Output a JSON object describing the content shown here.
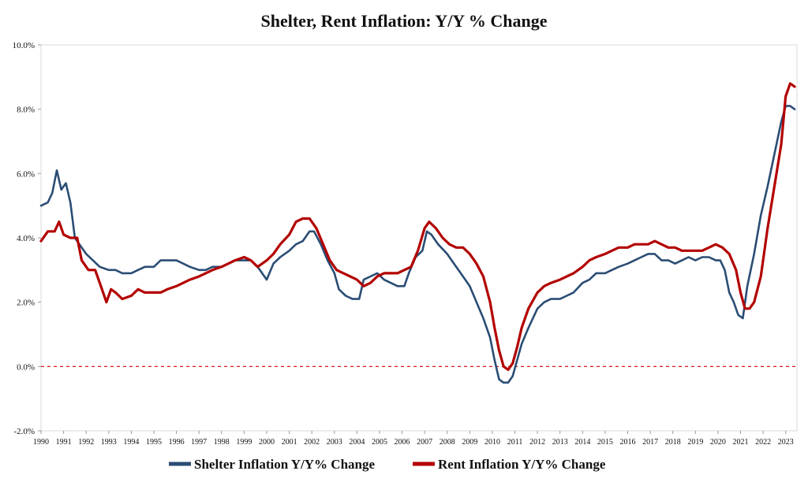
{
  "chart_data": {
    "type": "line",
    "title": "Shelter, Rent Inflation: Y/Y % Change",
    "xlabel": "",
    "ylabel": "",
    "xlim": [
      1990,
      2023.5
    ],
    "ylim": [
      -2,
      10
    ],
    "y_ticks": [
      -2,
      0,
      2,
      4,
      6,
      8,
      10
    ],
    "y_tick_labels": [
      "-2.0%",
      "0.0%",
      "2.0%",
      "4.0%",
      "6.0%",
      "8.0%",
      "10.0%"
    ],
    "x_ticks": [
      1990,
      1991,
      1992,
      1993,
      1994,
      1995,
      1996,
      1997,
      1998,
      1999,
      2000,
      2001,
      2002,
      2003,
      2004,
      2005,
      2006,
      2007,
      2008,
      2009,
      2010,
      2011,
      2012,
      2013,
      2014,
      2015,
      2016,
      2017,
      2018,
      2019,
      2020,
      2021,
      2022,
      2023
    ],
    "x_tick_labels": [
      "1990",
      "1991",
      "1992",
      "1993",
      "1994",
      "1995",
      "1996",
      "1997",
      "1998",
      "1999",
      "2000",
      "2001",
      "2002",
      "2003",
      "2004",
      "2005",
      "2006",
      "2007",
      "2008",
      "2009",
      "2010",
      "2011",
      "2012",
      "2013",
      "2014",
      "2015",
      "2016",
      "2017",
      "2018",
      "2019",
      "2020",
      "2021",
      "2022",
      "2023"
    ],
    "reference_line": {
      "y": 0,
      "style": "dashed",
      "color": "#cc0000"
    },
    "legend_position": "bottom",
    "series": [
      {
        "name": "Shelter Inflation Y/Y% Change",
        "color": "#2a4d74",
        "x": [
          1990,
          1990.3,
          1990.5,
          1990.7,
          1990.9,
          1991.1,
          1991.3,
          1991.5,
          1991.8,
          1992,
          1992.3,
          1992.6,
          1993,
          1993.3,
          1993.6,
          1994,
          1994.3,
          1994.6,
          1995,
          1995.3,
          1995.6,
          1996,
          1996.3,
          1996.6,
          1997,
          1997.3,
          1997.6,
          1998,
          1998.3,
          1998.6,
          1999,
          1999.3,
          1999.6,
          2000,
          2000.3,
          2000.6,
          2001,
          2001.3,
          2001.6,
          2001.9,
          2002.1,
          2002.4,
          2002.7,
          2003,
          2003.2,
          2003.5,
          2003.8,
          2004.1,
          2004.3,
          2004.6,
          2004.9,
          2005.2,
          2005.5,
          2005.8,
          2006.1,
          2006.3,
          2006.6,
          2006.9,
          2007.1,
          2007.3,
          2007.6,
          2008,
          2008.3,
          2008.6,
          2009,
          2009.3,
          2009.6,
          2009.9,
          2010.1,
          2010.3,
          2010.5,
          2010.7,
          2010.9,
          2011.1,
          2011.3,
          2011.6,
          2012,
          2012.3,
          2012.6,
          2013,
          2013.3,
          2013.6,
          2014,
          2014.3,
          2014.6,
          2015,
          2015.3,
          2015.6,
          2016,
          2016.3,
          2016.6,
          2016.9,
          2017.2,
          2017.5,
          2017.8,
          2018.1,
          2018.4,
          2018.7,
          2019,
          2019.3,
          2019.6,
          2019.9,
          2020.1,
          2020.3,
          2020.5,
          2020.7,
          2020.9,
          2021.1,
          2021.3,
          2021.6,
          2021.9,
          2022.2,
          2022.5,
          2022.8,
          2023,
          2023.2,
          2023.4
        ],
        "values": [
          5.0,
          5.1,
          5.4,
          6.1,
          5.5,
          5.7,
          5.1,
          4.0,
          3.7,
          3.5,
          3.3,
          3.1,
          3.0,
          3.0,
          2.9,
          2.9,
          3.0,
          3.1,
          3.1,
          3.3,
          3.3,
          3.3,
          3.2,
          3.1,
          3.0,
          3.0,
          3.1,
          3.1,
          3.2,
          3.3,
          3.3,
          3.3,
          3.1,
          2.7,
          3.2,
          3.4,
          3.6,
          3.8,
          3.9,
          4.2,
          4.2,
          3.8,
          3.3,
          2.9,
          2.4,
          2.2,
          2.1,
          2.1,
          2.7,
          2.8,
          2.9,
          2.7,
          2.6,
          2.5,
          2.5,
          2.9,
          3.4,
          3.6,
          4.2,
          4.1,
          3.8,
          3.5,
          3.2,
          2.9,
          2.5,
          2.0,
          1.5,
          0.9,
          0.2,
          -0.4,
          -0.5,
          -0.5,
          -0.3,
          0.2,
          0.7,
          1.2,
          1.8,
          2.0,
          2.1,
          2.1,
          2.2,
          2.3,
          2.6,
          2.7,
          2.9,
          2.9,
          3.0,
          3.1,
          3.2,
          3.3,
          3.4,
          3.5,
          3.5,
          3.3,
          3.3,
          3.2,
          3.3,
          3.4,
          3.3,
          3.4,
          3.4,
          3.3,
          3.3,
          3.0,
          2.3,
          2.0,
          1.6,
          1.5,
          2.5,
          3.5,
          4.7,
          5.6,
          6.6,
          7.6,
          8.1,
          8.1,
          8.0
        ]
      },
      {
        "name": "Rent Inflation Y/Y% Change",
        "color": "#b30000",
        "x": [
          1990,
          1990.3,
          1990.6,
          1990.8,
          1991,
          1991.3,
          1991.6,
          1991.8,
          1992.1,
          1992.4,
          1992.6,
          1992.9,
          1993.1,
          1993.3,
          1993.6,
          1994,
          1994.3,
          1994.6,
          1995,
          1995.3,
          1995.6,
          1996,
          1996.3,
          1996.6,
          1997,
          1997.3,
          1997.6,
          1998,
          1998.3,
          1998.6,
          1999,
          1999.3,
          1999.6,
          2000,
          2000.3,
          2000.6,
          2001,
          2001.3,
          2001.6,
          2001.9,
          2002.2,
          2002.5,
          2002.8,
          2003.1,
          2003.4,
          2003.7,
          2004,
          2004.3,
          2004.6,
          2004.9,
          2005.2,
          2005.5,
          2005.8,
          2006.1,
          2006.4,
          2006.7,
          2007,
          2007.2,
          2007.5,
          2007.8,
          2008.1,
          2008.4,
          2008.7,
          2009,
          2009.3,
          2009.6,
          2009.9,
          2010.1,
          2010.3,
          2010.5,
          2010.7,
          2010.9,
          2011.1,
          2011.3,
          2011.6,
          2012,
          2012.3,
          2012.6,
          2013,
          2013.3,
          2013.6,
          2014,
          2014.3,
          2014.6,
          2015,
          2015.3,
          2015.6,
          2016,
          2016.3,
          2016.6,
          2016.9,
          2017.2,
          2017.5,
          2017.8,
          2018.1,
          2018.4,
          2018.7,
          2019,
          2019.3,
          2019.6,
          2019.9,
          2020.2,
          2020.5,
          2020.8,
          2021,
          2021.2,
          2021.4,
          2021.6,
          2021.9,
          2022.2,
          2022.5,
          2022.8,
          2023,
          2023.2,
          2023.4
        ],
        "values": [
          3.9,
          4.2,
          4.2,
          4.5,
          4.1,
          4.0,
          4.0,
          3.3,
          3.0,
          3.0,
          2.6,
          2.0,
          2.4,
          2.3,
          2.1,
          2.2,
          2.4,
          2.3,
          2.3,
          2.3,
          2.4,
          2.5,
          2.6,
          2.7,
          2.8,
          2.9,
          3.0,
          3.1,
          3.2,
          3.3,
          3.4,
          3.3,
          3.1,
          3.3,
          3.5,
          3.8,
          4.1,
          4.5,
          4.6,
          4.6,
          4.3,
          3.8,
          3.3,
          3.0,
          2.9,
          2.8,
          2.7,
          2.5,
          2.6,
          2.8,
          2.9,
          2.9,
          2.9,
          3.0,
          3.1,
          3.6,
          4.3,
          4.5,
          4.3,
          4.0,
          3.8,
          3.7,
          3.7,
          3.5,
          3.2,
          2.8,
          2.0,
          1.2,
          0.5,
          0.0,
          -0.1,
          0.1,
          0.6,
          1.2,
          1.8,
          2.3,
          2.5,
          2.6,
          2.7,
          2.8,
          2.9,
          3.1,
          3.3,
          3.4,
          3.5,
          3.6,
          3.7,
          3.7,
          3.8,
          3.8,
          3.8,
          3.9,
          3.8,
          3.7,
          3.7,
          3.6,
          3.6,
          3.6,
          3.6,
          3.7,
          3.8,
          3.7,
          3.5,
          3.0,
          2.3,
          1.8,
          1.8,
          2.0,
          2.8,
          4.3,
          5.6,
          6.9,
          8.4,
          8.8,
          8.7
        ]
      }
    ]
  }
}
